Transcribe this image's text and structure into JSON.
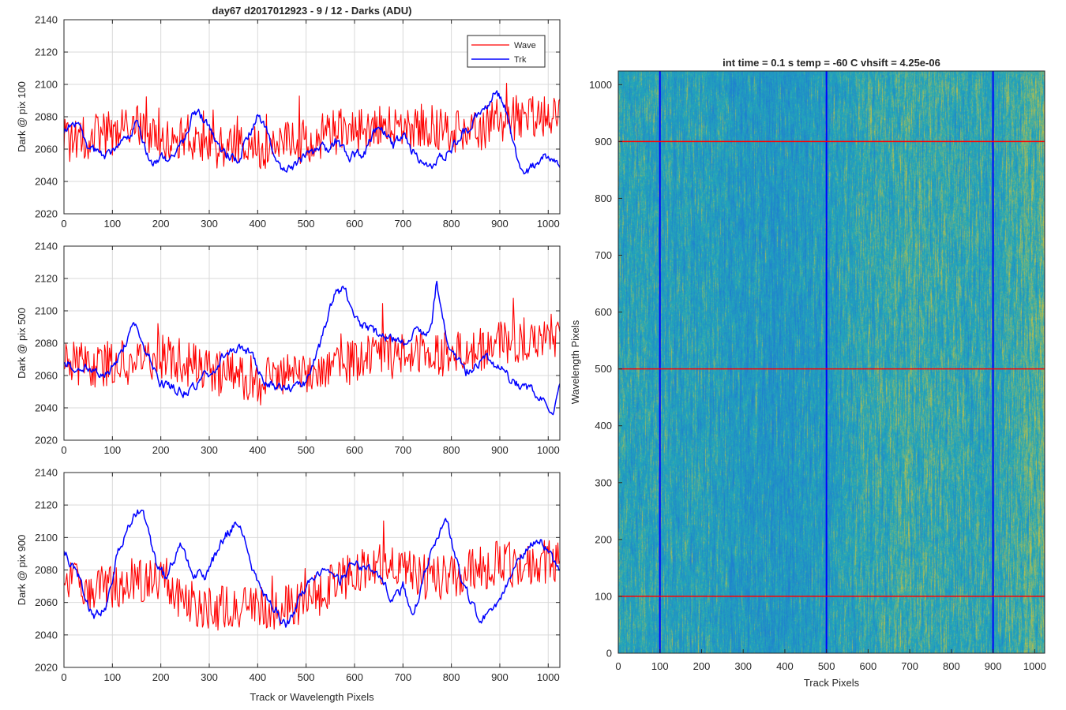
{
  "figure": {
    "title": "day67 d2017012923 - 9 / 12 - Darks (ADU)",
    "colors": {
      "wave": "#ff0000",
      "trk": "#0000ff",
      "grid": "#d9d9d9",
      "axis": "#262626",
      "heat_low": "#1f7fd0",
      "heat_mid": "#23a7b8",
      "heat_high": "#c8c040",
      "marker_row": "#ff0000",
      "marker_col": "#0000ff"
    }
  },
  "chart_data": [
    {
      "type": "line",
      "title": "day67 d2017012923 - 9 / 12 - Darks (ADU)",
      "xlabel": "",
      "ylabel": "Dark @ pix 100",
      "xlim": [
        0,
        1024
      ],
      "ylim": [
        2020,
        2140
      ],
      "xticks": [
        0,
        100,
        200,
        300,
        400,
        500,
        600,
        700,
        800,
        900,
        1000
      ],
      "yticks": [
        2020,
        2040,
        2060,
        2080,
        2100,
        2120,
        2140
      ],
      "grid": true,
      "legend": {
        "placement": "top-right",
        "entries": [
          "Wave",
          "Trk"
        ]
      },
      "series": [
        {
          "name": "Wave",
          "color": "#ff0000",
          "x": [
            0,
            50,
            100,
            150,
            200,
            250,
            300,
            350,
            400,
            450,
            500,
            550,
            600,
            650,
            700,
            750,
            800,
            850,
            900,
            950,
            1000,
            1024
          ],
          "values": [
            2065,
            2068,
            2070,
            2075,
            2066,
            2068,
            2062,
            2062,
            2060,
            2066,
            2064,
            2070,
            2072,
            2074,
            2072,
            2075,
            2070,
            2072,
            2078,
            2080,
            2082,
            2080
          ],
          "noise": 14
        },
        {
          "name": "Trk",
          "color": "#0000ff",
          "x": [
            0,
            20,
            50,
            80,
            100,
            130,
            150,
            180,
            220,
            250,
            270,
            290,
            320,
            360,
            380,
            400,
            420,
            450,
            480,
            500,
            540,
            560,
            590,
            620,
            650,
            680,
            700,
            730,
            760,
            800,
            830,
            860,
            890,
            910,
            940,
            960,
            990,
            1024
          ],
          "values": [
            2070,
            2078,
            2062,
            2055,
            2058,
            2065,
            2075,
            2052,
            2055,
            2065,
            2085,
            2078,
            2060,
            2052,
            2068,
            2080,
            2070,
            2045,
            2050,
            2058,
            2060,
            2065,
            2055,
            2058,
            2075,
            2062,
            2068,
            2055,
            2050,
            2060,
            2072,
            2082,
            2095,
            2088,
            2050,
            2046,
            2055,
            2052
          ],
          "noise": 5
        }
      ]
    },
    {
      "type": "line",
      "title": "",
      "xlabel": "",
      "ylabel": "Dark @ pix 500",
      "xlim": [
        0,
        1024
      ],
      "ylim": [
        2020,
        2140
      ],
      "xticks": [
        0,
        100,
        200,
        300,
        400,
        500,
        600,
        700,
        800,
        900,
        1000
      ],
      "yticks": [
        2020,
        2040,
        2060,
        2080,
        2100,
        2120,
        2140
      ],
      "grid": true,
      "series": [
        {
          "name": "Wave",
          "color": "#ff0000",
          "x": [
            0,
            50,
            100,
            150,
            200,
            250,
            300,
            350,
            400,
            450,
            500,
            550,
            600,
            650,
            700,
            750,
            800,
            850,
            900,
            950,
            1000,
            1024
          ],
          "values": [
            2070,
            2065,
            2068,
            2070,
            2072,
            2068,
            2062,
            2060,
            2058,
            2062,
            2060,
            2068,
            2070,
            2072,
            2072,
            2075,
            2072,
            2076,
            2080,
            2082,
            2085,
            2086
          ],
          "noise": 14
        },
        {
          "name": "Trk",
          "color": "#0000ff",
          "x": [
            0,
            40,
            80,
            110,
            130,
            150,
            170,
            200,
            250,
            300,
            350,
            380,
            420,
            460,
            500,
            530,
            560,
            580,
            600,
            650,
            700,
            720,
            760,
            770,
            790,
            830,
            870,
            900,
            930,
            970,
            1010,
            1024
          ],
          "values": [
            2068,
            2065,
            2058,
            2068,
            2082,
            2092,
            2075,
            2055,
            2050,
            2062,
            2078,
            2075,
            2055,
            2052,
            2055,
            2080,
            2110,
            2115,
            2095,
            2085,
            2080,
            2085,
            2090,
            2118,
            2082,
            2062,
            2072,
            2065,
            2055,
            2050,
            2040,
            2055
          ],
          "noise": 5
        }
      ]
    },
    {
      "type": "line",
      "title": "",
      "xlabel": "Track or Wavelength Pixels",
      "ylabel": "Dark @ pix 900",
      "xlim": [
        0,
        1024
      ],
      "ylim": [
        2020,
        2140
      ],
      "xticks": [
        0,
        100,
        200,
        300,
        400,
        500,
        600,
        700,
        800,
        900,
        1000
      ],
      "yticks": [
        2020,
        2040,
        2060,
        2080,
        2100,
        2120,
        2140
      ],
      "grid": true,
      "series": [
        {
          "name": "Wave",
          "color": "#ff0000",
          "x": [
            0,
            50,
            100,
            150,
            200,
            250,
            300,
            350,
            400,
            450,
            500,
            550,
            600,
            650,
            700,
            750,
            800,
            850,
            900,
            950,
            1000,
            1024
          ],
          "values": [
            2078,
            2068,
            2070,
            2074,
            2072,
            2060,
            2058,
            2055,
            2056,
            2058,
            2060,
            2070,
            2078,
            2082,
            2080,
            2075,
            2076,
            2080,
            2085,
            2082,
            2086,
            2085
          ],
          "noise": 14
        },
        {
          "name": "Trk",
          "color": "#0000ff",
          "x": [
            0,
            30,
            60,
            90,
            110,
            140,
            160,
            190,
            210,
            240,
            260,
            290,
            330,
            360,
            390,
            420,
            440,
            460,
            500,
            540,
            570,
            600,
            640,
            680,
            700,
            720,
            760,
            790,
            820,
            860,
            900,
            940,
            980,
            1000,
            1024
          ],
          "values": [
            2092,
            2075,
            2050,
            2060,
            2090,
            2110,
            2118,
            2085,
            2075,
            2095,
            2080,
            2075,
            2100,
            2110,
            2080,
            2060,
            2055,
            2045,
            2070,
            2080,
            2072,
            2085,
            2078,
            2062,
            2070,
            2050,
            2095,
            2110,
            2075,
            2048,
            2062,
            2085,
            2100,
            2090,
            2080
          ],
          "noise": 5
        }
      ]
    },
    {
      "type": "heatmap",
      "title": "int time = 0.1 s   temp = -60 C   vhsift = 4.25e-06",
      "xlabel": "Track Pixels",
      "ylabel": "Wavelength Pixels",
      "xlim": [
        0,
        1024
      ],
      "ylim": [
        0,
        1024
      ],
      "xticks": [
        0,
        100,
        200,
        300,
        400,
        500,
        600,
        700,
        800,
        900,
        1000
      ],
      "yticks": [
        0,
        100,
        200,
        300,
        400,
        500,
        600,
        700,
        800,
        900,
        1000
      ],
      "colormap": "parula",
      "track_profile": {
        "x": [
          0,
          100,
          200,
          300,
          400,
          500,
          600,
          700,
          800,
          900,
          1000,
          1024
        ],
        "level": [
          0.45,
          0.42,
          0.4,
          0.33,
          0.3,
          0.38,
          0.5,
          0.55,
          0.52,
          0.48,
          0.62,
          0.65
        ]
      },
      "marker_rows": [
        100,
        500,
        900
      ],
      "marker_cols": [
        100,
        500,
        900
      ]
    }
  ]
}
